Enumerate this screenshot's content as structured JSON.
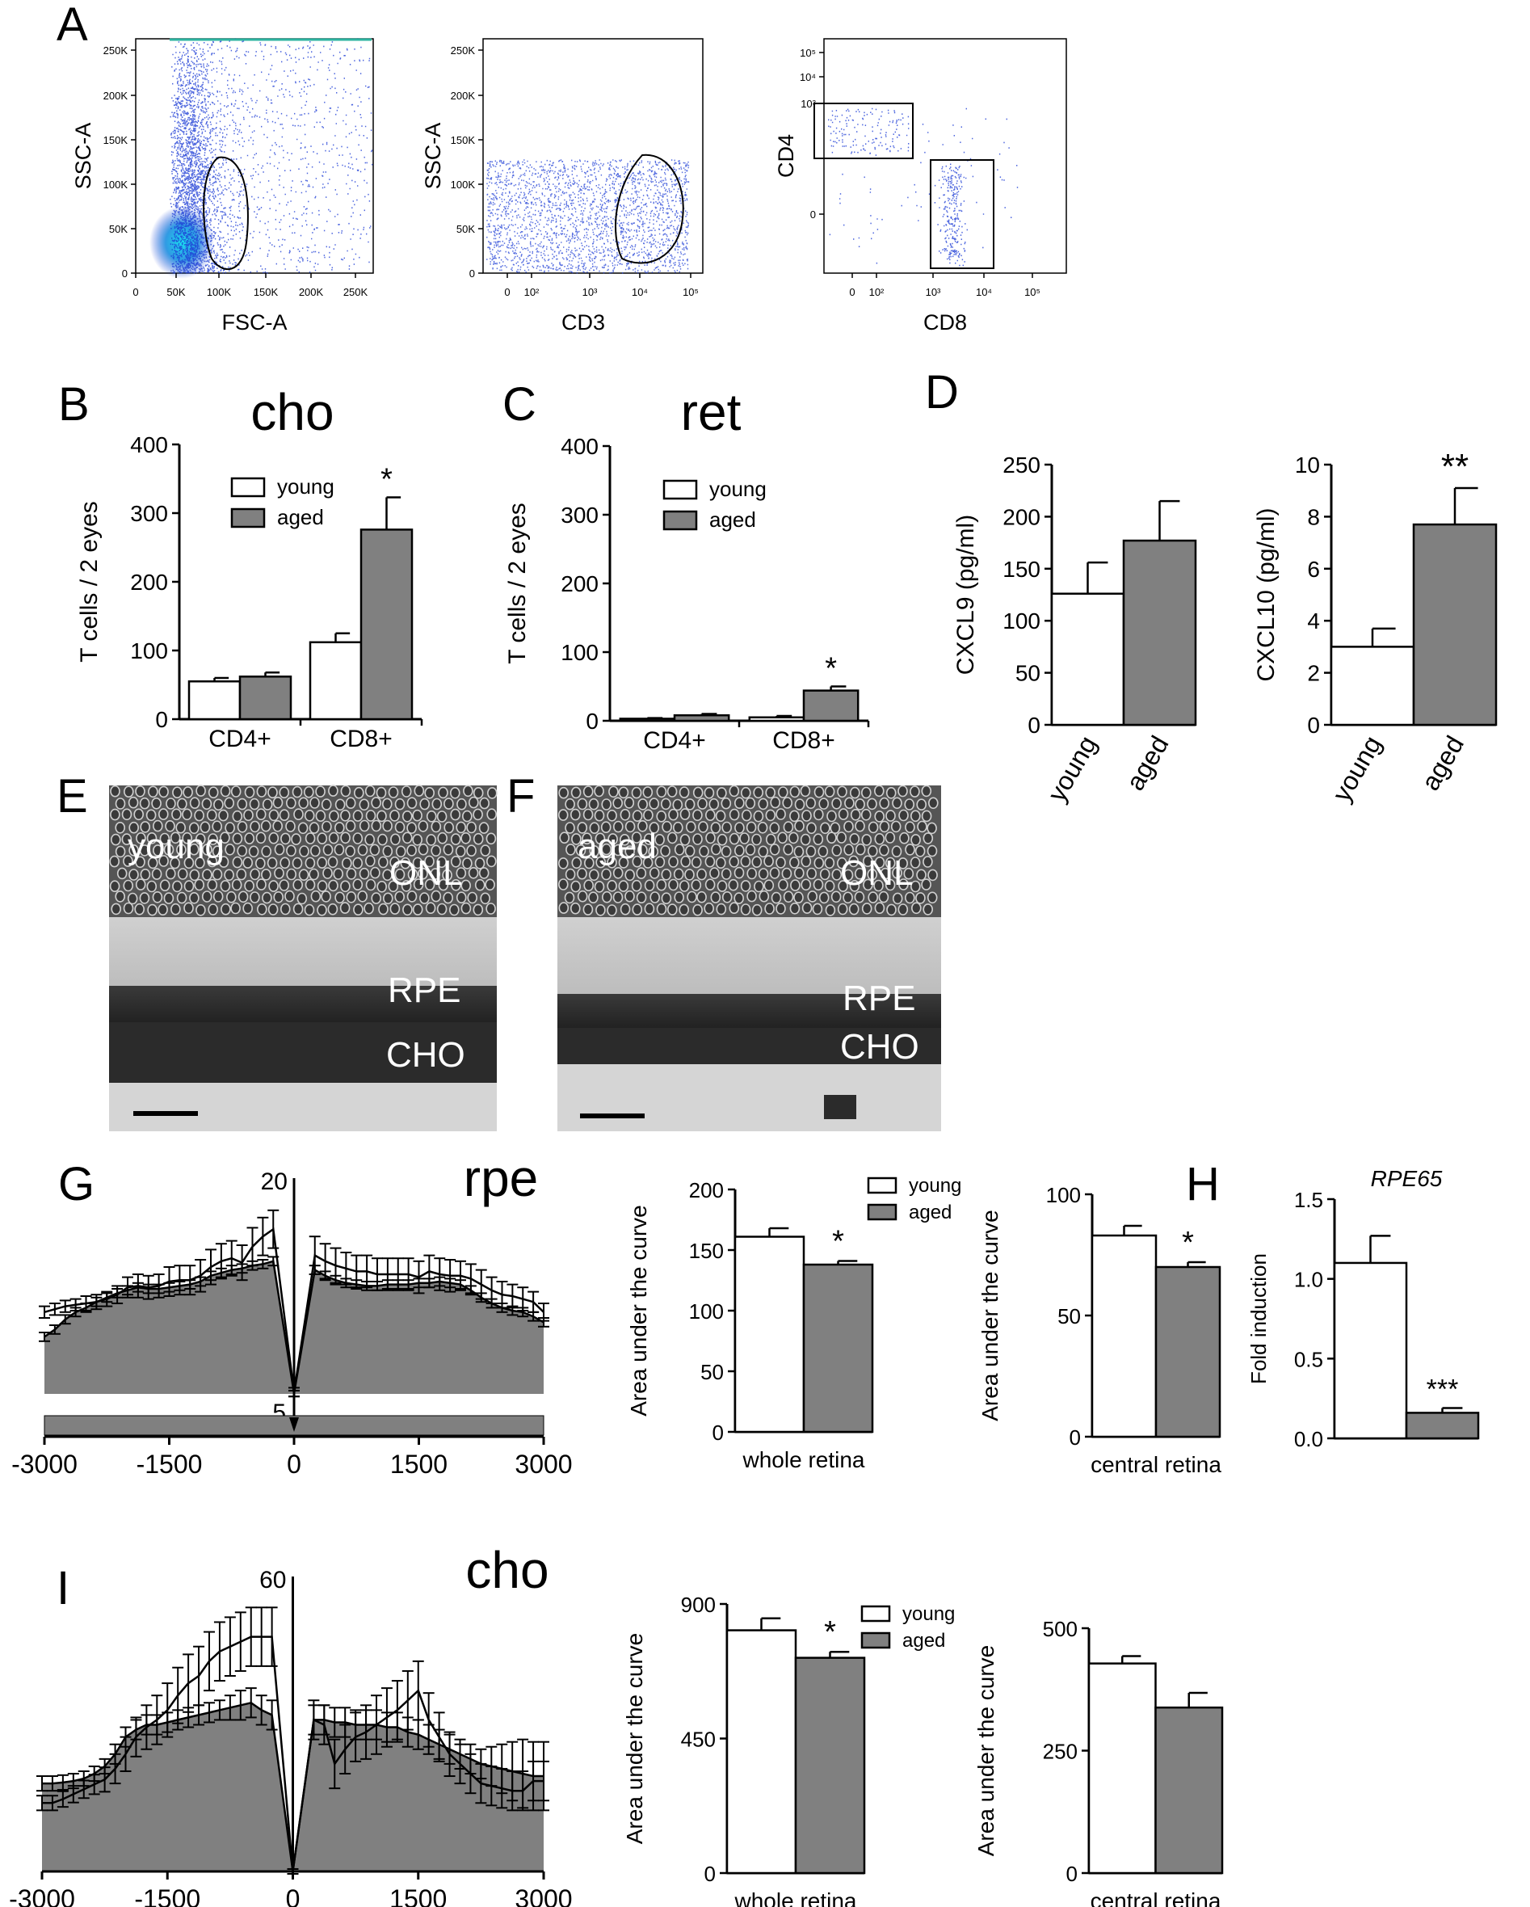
{
  "panel_labels": [
    "A",
    "B",
    "C",
    "D",
    "E",
    "F",
    "G",
    "H",
    "I"
  ],
  "colors": {
    "young": "#ffffff",
    "aged": "#808080",
    "dots": "#1f3fd6",
    "dots_dense": "#19c6e6",
    "axis": "#000000"
  },
  "legend": {
    "young": "young",
    "aged": "aged"
  },
  "panel_A": {
    "plot1": {
      "xlabel": "FSC-A",
      "ylabel": "SSC-A",
      "xticks": [
        "0",
        "50K",
        "100K",
        "150K",
        "200K",
        "250K"
      ],
      "yticks": [
        "0",
        "50K",
        "100K",
        "150K",
        "200K",
        "250K"
      ]
    },
    "plot2": {
      "xlabel": "CD3",
      "ylabel": "SSC-A",
      "xticks": [
        "0",
        "10²",
        "10³",
        "10⁴",
        "10⁵"
      ],
      "yticks": [
        "0",
        "50K",
        "100K",
        "150K",
        "200K",
        "250K"
      ]
    },
    "plot3": {
      "xlabel": "CD8",
      "ylabel": "CD4",
      "xticks": [
        "0",
        "10²",
        "10³",
        "10⁴",
        "10⁵"
      ],
      "yticks": [
        "0",
        "10³",
        "10⁴",
        "10⁵"
      ]
    }
  },
  "images": {
    "E": {
      "group": "young",
      "layers": [
        "ONL",
        "RPE",
        "CHO"
      ]
    },
    "F": {
      "group": "aged",
      "layers": [
        "ONL",
        "RPE",
        "CHO"
      ]
    }
  },
  "chart_data": [
    {
      "id": "B",
      "type": "bar",
      "title": "cho",
      "ylabel": "T cells / 2 eyes",
      "categories": [
        "CD4+",
        "CD8+"
      ],
      "ylim": [
        0,
        400
      ],
      "yticks": [
        0,
        100,
        200,
        300,
        400
      ],
      "series": [
        {
          "name": "young",
          "values": [
            55,
            112
          ],
          "errors": [
            5,
            13
          ]
        },
        {
          "name": "aged",
          "values": [
            62,
            276
          ],
          "errors": [
            6,
            47
          ]
        }
      ],
      "annotations": [
        {
          "category": "CD8+",
          "text": "*"
        }
      ],
      "legend": "top-left"
    },
    {
      "id": "C",
      "type": "bar",
      "title": "ret",
      "ylabel": "T cells / 2 eyes",
      "categories": [
        "CD4+",
        "CD8+"
      ],
      "ylim": [
        0,
        400
      ],
      "yticks": [
        0,
        100,
        200,
        300,
        400
      ],
      "series": [
        {
          "name": "young",
          "values": [
            3,
            5
          ],
          "errors": [
            1,
            2
          ]
        },
        {
          "name": "aged",
          "values": [
            8,
            44
          ],
          "errors": [
            2,
            6
          ]
        }
      ],
      "annotations": [
        {
          "category": "CD8+",
          "text": "*"
        }
      ],
      "legend": "top-left"
    },
    {
      "id": "D1",
      "type": "bar",
      "ylabel": "CXCL9 (pg/ml)",
      "categories": [
        "young",
        "aged"
      ],
      "values": [
        126,
        177
      ],
      "errors": [
        30,
        38
      ],
      "ylim": [
        0,
        250
      ],
      "yticks": [
        0,
        50,
        100,
        150,
        200,
        250
      ]
    },
    {
      "id": "D2",
      "type": "bar",
      "ylabel": "CXCL10 (pg/ml)",
      "categories": [
        "young",
        "aged"
      ],
      "values": [
        3.0,
        7.7
      ],
      "errors": [
        0.7,
        1.4
      ],
      "ylim": [
        0,
        10
      ],
      "yticks": [
        0,
        2,
        4,
        6,
        8,
        10
      ],
      "annotation": "**"
    },
    {
      "id": "G_spider",
      "type": "area",
      "title": "rpe",
      "xticks": [
        -3000,
        -1500,
        0,
        1500,
        3000
      ],
      "ytop_label": "20",
      "ybottom_label": "5",
      "ylim": [
        5,
        20
      ],
      "x": [
        -3000,
        -2875,
        -2750,
        -2625,
        -2500,
        -2375,
        -2250,
        -2125,
        -2000,
        -1875,
        -1750,
        -1625,
        -1500,
        -1375,
        -1250,
        -1125,
        -1000,
        -875,
        -750,
        -625,
        -500,
        -375,
        -250,
        0,
        250,
        375,
        500,
        625,
        750,
        875,
        1000,
        1125,
        1250,
        1375,
        1500,
        1625,
        1750,
        1875,
        2000,
        2125,
        2250,
        2375,
        2500,
        2625,
        2750,
        2875,
        3000
      ],
      "series": [
        {
          "name": "young",
          "values": [
            10.9,
            11.1,
            11.3,
            11.4,
            11.5,
            11.6,
            11.8,
            12.1,
            12.6,
            12.7,
            12.6,
            12.7,
            13.0,
            13.1,
            13.1,
            13.4,
            14.0,
            14.4,
            14.6,
            14.3,
            15.4,
            16.1,
            16.6,
            5.4,
            14.8,
            14.4,
            14.1,
            13.9,
            13.7,
            13.7,
            13.5,
            13.5,
            13.5,
            13.5,
            13.3,
            13.7,
            13.5,
            13.4,
            13.4,
            13.2,
            12.8,
            12.4,
            12.1,
            12.0,
            11.8,
            11.6,
            10.9
          ],
          "errors": [
            0.4,
            0.4,
            0.4,
            0.4,
            0.5,
            0.5,
            0.5,
            0.6,
            0.7,
            0.8,
            0.8,
            0.8,
            1.0,
            1.0,
            1.0,
            1.1,
            1.2,
            1.2,
            1.2,
            1.2,
            1.3,
            1.3,
            1.3,
            0.3,
            1.3,
            1.2,
            1.2,
            1.1,
            1.1,
            1.1,
            1.1,
            1.1,
            1.1,
            1.1,
            1.1,
            1.1,
            1.1,
            1.1,
            1.0,
            1.0,
            1.0,
            0.9,
            0.9,
            0.8,
            0.8,
            0.7,
            0.6
          ]
        },
        {
          "name": "aged",
          "values": [
            9.2,
            9.7,
            10.4,
            10.9,
            11.2,
            11.6,
            11.9,
            12.2,
            12.4,
            12.6,
            12.5,
            12.5,
            12.6,
            12.7,
            12.8,
            13.0,
            13.4,
            13.6,
            13.8,
            13.9,
            14.1,
            14.2,
            14.4,
            5.3,
            13.8,
            13.4,
            13.1,
            12.9,
            12.8,
            12.7,
            12.7,
            12.8,
            12.8,
            12.8,
            12.9,
            12.9,
            13.0,
            12.9,
            12.8,
            12.4,
            11.9,
            11.5,
            11.2,
            11.0,
            10.9,
            10.6,
            10.2
          ],
          "errors": [
            0.3,
            0.3,
            0.3,
            0.3,
            0.3,
            0.3,
            0.3,
            0.3,
            0.3,
            0.3,
            0.3,
            0.3,
            0.3,
            0.3,
            0.3,
            0.3,
            0.3,
            0.3,
            0.3,
            0.3,
            0.3,
            0.3,
            0.3,
            0.2,
            0.3,
            0.3,
            0.3,
            0.3,
            0.3,
            0.3,
            0.3,
            0.3,
            0.3,
            0.3,
            0.3,
            0.3,
            0.3,
            0.3,
            0.3,
            0.3,
            0.3,
            0.3,
            0.3,
            0.3,
            0.3,
            0.3,
            0.3
          ]
        }
      ]
    },
    {
      "id": "G_auc_whole",
      "type": "bar",
      "ylabel": "Area under the curve",
      "xlabel": "whole retina",
      "categories": [
        "young",
        "aged"
      ],
      "values": [
        161,
        138
      ],
      "errors": [
        7,
        3
      ],
      "ylim": [
        0,
        200
      ],
      "yticks": [
        0,
        50,
        100,
        150,
        200
      ],
      "annotation": "*",
      "legend": "top-right"
    },
    {
      "id": "G_auc_central",
      "type": "bar",
      "ylabel": "Area under the curve",
      "xlabel": "central retina",
      "categories": [
        "young",
        "aged"
      ],
      "values": [
        83,
        70
      ],
      "errors": [
        4,
        2
      ],
      "ylim": [
        0,
        100
      ],
      "yticks": [
        0,
        50,
        100
      ],
      "annotation": "*"
    },
    {
      "id": "H",
      "type": "bar",
      "title": "RPE65",
      "ylabel": "Fold induction",
      "categories": [
        "young",
        "aged"
      ],
      "values": [
        1.1,
        0.16
      ],
      "errors": [
        0.17,
        0.03
      ],
      "ylim": [
        0,
        1.5
      ],
      "yticks": [
        0.0,
        0.5,
        1.0,
        1.5
      ],
      "annotation": "***"
    },
    {
      "id": "I_spider",
      "type": "area",
      "title": "cho",
      "xticks": [
        -3000,
        -1500,
        0,
        1500,
        3000
      ],
      "ytop_label": "60",
      "ylim": [
        0,
        60
      ],
      "x": [
        -3000,
        -2875,
        -2750,
        -2625,
        -2500,
        -2375,
        -2250,
        -2125,
        -2000,
        -1875,
        -1750,
        -1625,
        -1500,
        -1375,
        -1250,
        -1125,
        -1000,
        -875,
        -750,
        -625,
        -500,
        -375,
        -250,
        0,
        250,
        375,
        500,
        625,
        750,
        875,
        1000,
        1125,
        1250,
        1375,
        1500,
        1625,
        1750,
        1875,
        2000,
        2125,
        2250,
        2375,
        2500,
        2625,
        2750,
        2875,
        3000
      ],
      "series": [
        {
          "name": "young",
          "values": [
            14,
            14,
            14.8,
            15.8,
            16.8,
            17.8,
            18.8,
            21,
            24,
            27.5,
            29.5,
            31,
            33,
            36,
            38.5,
            40,
            43,
            45,
            46,
            47,
            48,
            48,
            48,
            0,
            31,
            30,
            22,
            25,
            27.5,
            28.5,
            30,
            31.5,
            33,
            35,
            37,
            31,
            27.5,
            24,
            22,
            20,
            18,
            17.5,
            17,
            16.5,
            16.5,
            18.5,
            18.5
          ],
          "errors": [
            1.5,
            1.5,
            1.6,
            1.7,
            1.8,
            2,
            2.5,
            3,
            3.5,
            4,
            4.5,
            5,
            5.5,
            5.7,
            5.9,
            6,
            6,
            6,
            6,
            6,
            6,
            6,
            6,
            0.5,
            4,
            4,
            5,
            5,
            5,
            5.5,
            6,
            6,
            6,
            6,
            6,
            5.5,
            5,
            4.5,
            4,
            4,
            4,
            4,
            4,
            4,
            4,
            4,
            4
          ]
        },
        {
          "name": "aged",
          "values": [
            18,
            18,
            18.2,
            18.5,
            19,
            20,
            21.5,
            24,
            27.5,
            29,
            30,
            30,
            30.5,
            31,
            31.5,
            32,
            32.5,
            33,
            33.5,
            34,
            34.5,
            33,
            32,
            0,
            31,
            31,
            30.5,
            30.5,
            30,
            30,
            30,
            29.5,
            29.5,
            28.5,
            28,
            27,
            26,
            25,
            24,
            23,
            22,
            21.5,
            21,
            20.5,
            20,
            19.5,
            19.5
          ],
          "errors": [
            1.5,
            1.5,
            1.5,
            1.5,
            1.5,
            1.5,
            1.5,
            2,
            2,
            2,
            2,
            2,
            2,
            2,
            2,
            2,
            2,
            2,
            2.5,
            3,
            3,
            3,
            3,
            0.5,
            3,
            3,
            3,
            3,
            3,
            3,
            3,
            3,
            3,
            3,
            3,
            3,
            3,
            3,
            3,
            3,
            3,
            4,
            5,
            6,
            7,
            7,
            7
          ]
        }
      ]
    },
    {
      "id": "I_auc_whole",
      "type": "bar",
      "ylabel": "Area under the curve",
      "xlabel": "whole retina",
      "categories": [
        "young",
        "aged"
      ],
      "values": [
        812,
        720
      ],
      "errors": [
        40,
        20
      ],
      "ylim": [
        0,
        900
      ],
      "yticks": [
        0,
        450,
        900
      ],
      "annotation": "*",
      "legend": "top-right"
    },
    {
      "id": "I_auc_central",
      "type": "bar",
      "ylabel": "Area under the curve",
      "xlabel": "central retina",
      "categories": [
        "young",
        "aged"
      ],
      "values": [
        428,
        338
      ],
      "errors": [
        15,
        30
      ],
      "ylim": [
        0,
        500
      ],
      "yticks": [
        0,
        250,
        500
      ]
    }
  ]
}
